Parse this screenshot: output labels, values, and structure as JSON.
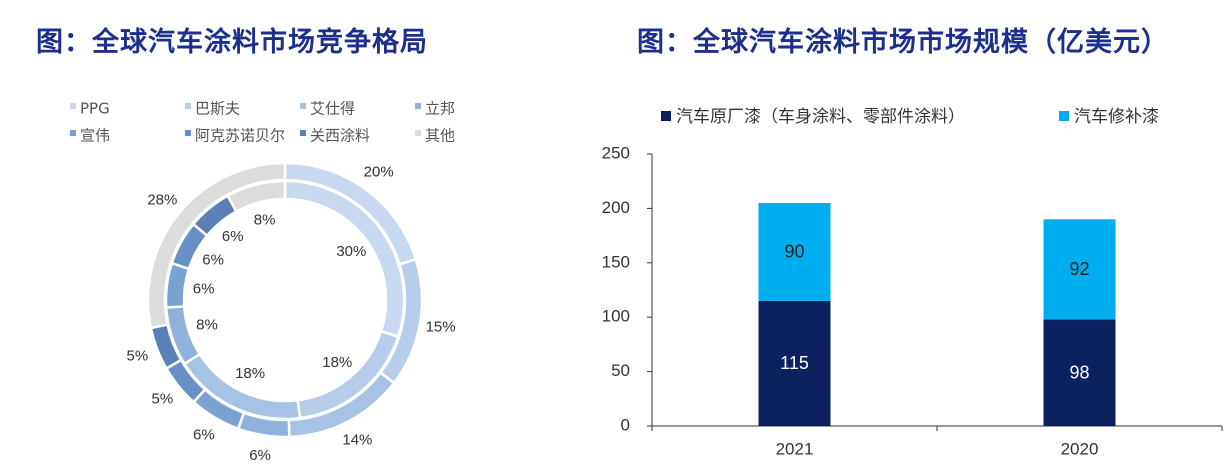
{
  "titles": {
    "left": "图：全球汽车涂料市场竞争格局",
    "right": "图：全球汽车涂料市场市场规模（亿美元）"
  },
  "colors": {
    "title": "#1c2f8c",
    "oem": "#0b2160",
    "refinish": "#00aeef",
    "other": "#dcdcdc"
  },
  "chart_data": [
    {
      "type": "pie",
      "subtype": "double-donut",
      "legend": [
        "PPG",
        "巴斯夫",
        "艾仕得",
        "立邦",
        "宣伟",
        "阿克苏诺贝尔",
        "关西涂料",
        "其他"
      ],
      "legend_position": "top",
      "series": [
        {
          "ring": "outer",
          "values": [
            {
              "name": "PPG",
              "value": 20,
              "label": "20%"
            },
            {
              "name": "巴斯夫",
              "value": 15,
              "label": "15%"
            },
            {
              "name": "艾仕得",
              "value": 14,
              "label": "14%"
            },
            {
              "name": "立邦",
              "value": 6,
              "label": "6%"
            },
            {
              "name": "宣伟",
              "value": 6,
              "label": "6%"
            },
            {
              "name": "阿克苏诺贝尔",
              "value": 5,
              "label": "5%"
            },
            {
              "name": "关西涂料",
              "value": 5,
              "label": "5%"
            },
            {
              "name": "其他",
              "value": 28,
              "label": "28%"
            }
          ]
        },
        {
          "ring": "inner",
          "values": [
            {
              "name": "PPG",
              "value": 30,
              "label": "30%"
            },
            {
              "name": "巴斯夫",
              "value": 18,
              "label": "18%"
            },
            {
              "name": "艾仕得",
              "value": 18,
              "label": "18%"
            },
            {
              "name": "立邦",
              "value": 8,
              "label": "8%"
            },
            {
              "name": "宣伟",
              "value": 6,
              "label": "6%"
            },
            {
              "name": "阿克苏诺贝尔",
              "value": 6,
              "label": "6%"
            },
            {
              "name": "关西涂料",
              "value": 6,
              "label": "6%"
            },
            {
              "name": "其他",
              "value": 8,
              "label": "8%"
            }
          ]
        }
      ]
    },
    {
      "type": "bar",
      "stacked": true,
      "categories": [
        "2021",
        "2020"
      ],
      "series": [
        {
          "name": "汽车原厂漆（车身涂料、零部件涂料）",
          "values": [
            115,
            98
          ]
        },
        {
          "name": "汽车修补漆",
          "values": [
            90,
            92
          ]
        }
      ],
      "ylim": [
        0,
        250
      ],
      "yticks": [
        0,
        50,
        100,
        150,
        200,
        250
      ],
      "legend_position": "top",
      "grid": false
    }
  ]
}
